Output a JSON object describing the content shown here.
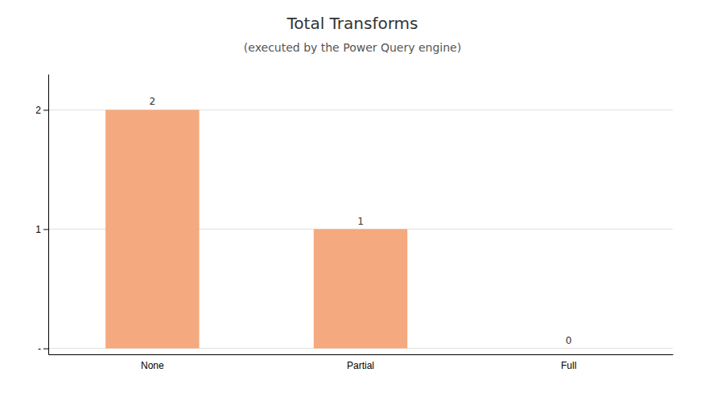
{
  "chart_data": {
    "type": "bar",
    "title": "Total Transforms",
    "subtitle": "(executed by the Power Query engine)",
    "categories": [
      "None",
      "Partial",
      "Full"
    ],
    "values": [
      2,
      1,
      0
    ],
    "color": "#F4A97F",
    "ylim": [
      -0.05,
      2.3
    ],
    "yticks": [
      {
        "value": 0,
        "label": "-"
      },
      1,
      2
    ],
    "grid": true,
    "data_labels": true
  }
}
